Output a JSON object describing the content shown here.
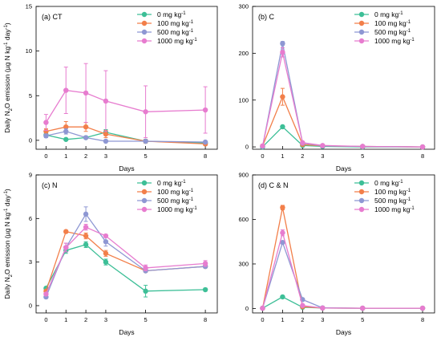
{
  "figure": {
    "x_axis_label": "Days",
    "y_axis_label_parts": [
      "Daily N",
      "2",
      "O emission (µg N kg",
      "-1",
      " day",
      "-1",
      ")"
    ]
  },
  "legend": {
    "entries": [
      {
        "label": "0 mg kg",
        "sup": "-1",
        "color": "#3dbf97"
      },
      {
        "label": "100 mg kg",
        "sup": "-1",
        "color": "#f27f4a"
      },
      {
        "label": "500 mg kg",
        "sup": "-1",
        "color": "#8e97d3"
      },
      {
        "label": "1000 mg kg",
        "sup": "-1",
        "color": "#e77ccf"
      }
    ]
  },
  "chart_data": [
    {
      "type": "line",
      "panel_label": "(a) CT",
      "x": [
        0,
        1,
        2,
        3,
        5,
        8
      ],
      "xticks": [
        "0",
        "1",
        "2",
        "3",
        "5",
        "8"
      ],
      "ylim": [
        -1,
        15
      ],
      "yticks": [
        "0",
        "5",
        "10",
        "15"
      ],
      "series": [
        {
          "name": "0 mg kg-1",
          "color": "#3dbf97",
          "values": [
            0.6,
            0.1,
            0.3,
            0.9,
            -0.1,
            -0.3
          ],
          "errors": [
            0.2,
            0.1,
            0.1,
            0.3,
            0.2,
            0.2
          ]
        },
        {
          "name": "100 mg kg-1",
          "color": "#f27f4a",
          "values": [
            1.0,
            1.5,
            1.5,
            0.7,
            -0.1,
            -0.4
          ],
          "errors": [
            0.3,
            0.6,
            0.5,
            0.4,
            0.2,
            0.2
          ]
        },
        {
          "name": "500 mg kg-1",
          "color": "#8e97d3",
          "values": [
            0.5,
            1.0,
            0.3,
            -0.1,
            -0.1,
            -0.2
          ],
          "errors": [
            0.2,
            0.3,
            0.1,
            0.1,
            0.1,
            0.1
          ]
        },
        {
          "name": "1000 mg kg-1",
          "color": "#e77ccf",
          "values": [
            2.0,
            5.6,
            5.3,
            4.4,
            3.2,
            3.4
          ],
          "errors": [
            0.9,
            2.6,
            3.3,
            3.4,
            2.9,
            2.6
          ]
        }
      ]
    },
    {
      "type": "line",
      "panel_label": "(b) C",
      "x": [
        0,
        1,
        2,
        3,
        5,
        8
      ],
      "xticks": [
        "0",
        "1",
        "2",
        "3",
        "5",
        "8"
      ],
      "ylim": [
        -5,
        300
      ],
      "yticks": [
        "0",
        "100",
        "200",
        "300"
      ],
      "series": [
        {
          "name": "0 mg kg-1",
          "color": "#3dbf97",
          "values": [
            0,
            43,
            3,
            1,
            0,
            0
          ],
          "errors": [
            1,
            3,
            1,
            0.5,
            0,
            0
          ]
        },
        {
          "name": "100 mg kg-1",
          "color": "#f27f4a",
          "values": [
            2,
            107,
            5,
            2,
            1,
            0
          ],
          "errors": [
            1,
            18,
            1,
            0.5,
            0,
            0
          ]
        },
        {
          "name": "500 mg kg-1",
          "color": "#8e97d3",
          "values": [
            1,
            221,
            8,
            2,
            1,
            0
          ],
          "errors": [
            1,
            4,
            1,
            0.5,
            0,
            0
          ]
        },
        {
          "name": "1000 mg kg-1",
          "color": "#e77ccf",
          "values": [
            2,
            202,
            9,
            3,
            1,
            0
          ],
          "errors": [
            1,
            10,
            2,
            0.5,
            0,
            0
          ]
        }
      ]
    },
    {
      "type": "line",
      "panel_label": "(c) N",
      "x": [
        0,
        1,
        2,
        3,
        5,
        8
      ],
      "xticks": [
        "0",
        "1",
        "2",
        "3",
        "5",
        "8"
      ],
      "ylim": [
        -0.5,
        9
      ],
      "yticks": [
        "0",
        "3",
        "6",
        "9"
      ],
      "series": [
        {
          "name": "0 mg kg-1",
          "color": "#3dbf97",
          "values": [
            1.2,
            3.8,
            4.2,
            3.0,
            1.0,
            1.1
          ],
          "errors": [
            0.1,
            0.2,
            0.2,
            0.2,
            0.4,
            0.1
          ]
        },
        {
          "name": "100 mg kg-1",
          "color": "#f27f4a",
          "values": [
            1.0,
            5.1,
            4.8,
            3.6,
            2.4,
            2.7
          ],
          "errors": [
            0.1,
            0.1,
            0.2,
            0.2,
            0.1,
            0.1
          ]
        },
        {
          "name": "500 mg kg-1",
          "color": "#8e97d3",
          "values": [
            0.6,
            4.0,
            6.3,
            4.4,
            2.4,
            2.7
          ],
          "errors": [
            0.1,
            0.3,
            0.5,
            0.3,
            0.1,
            0.1
          ]
        },
        {
          "name": "1000 mg kg-1",
          "color": "#e77ccf",
          "values": [
            0.8,
            4.0,
            5.4,
            4.8,
            2.6,
            2.9
          ],
          "errors": [
            0.1,
            0.3,
            0.2,
            0.1,
            0.2,
            0.2
          ]
        }
      ]
    },
    {
      "type": "line",
      "panel_label": "(d) C & N",
      "x": [
        0,
        1,
        2,
        3,
        5,
        8
      ],
      "xticks": [
        "0",
        "1",
        "2",
        "3",
        "5",
        "8"
      ],
      "ylim": [
        -30,
        900
      ],
      "yticks": [
        "0",
        "300",
        "600",
        "900"
      ],
      "series": [
        {
          "name": "0 mg kg-1",
          "color": "#3dbf97",
          "values": [
            2,
            78,
            8,
            3,
            2,
            2
          ],
          "errors": [
            1,
            5,
            2,
            1,
            0.5,
            0.5
          ]
        },
        {
          "name": "100 mg kg-1",
          "color": "#f27f4a",
          "values": [
            2,
            680,
            12,
            3,
            2,
            2
          ],
          "errors": [
            1,
            15,
            2,
            1,
            0.5,
            0.5
          ]
        },
        {
          "name": "500 mg kg-1",
          "color": "#8e97d3",
          "values": [
            2,
            445,
            60,
            4,
            2,
            2
          ],
          "errors": [
            1,
            10,
            5,
            1,
            0.5,
            0.5
          ]
        },
        {
          "name": "1000 mg kg-1",
          "color": "#e77ccf",
          "values": [
            2,
            510,
            20,
            3,
            2,
            2
          ],
          "errors": [
            1,
            20,
            3,
            1,
            0.5,
            0.5
          ]
        }
      ]
    }
  ]
}
